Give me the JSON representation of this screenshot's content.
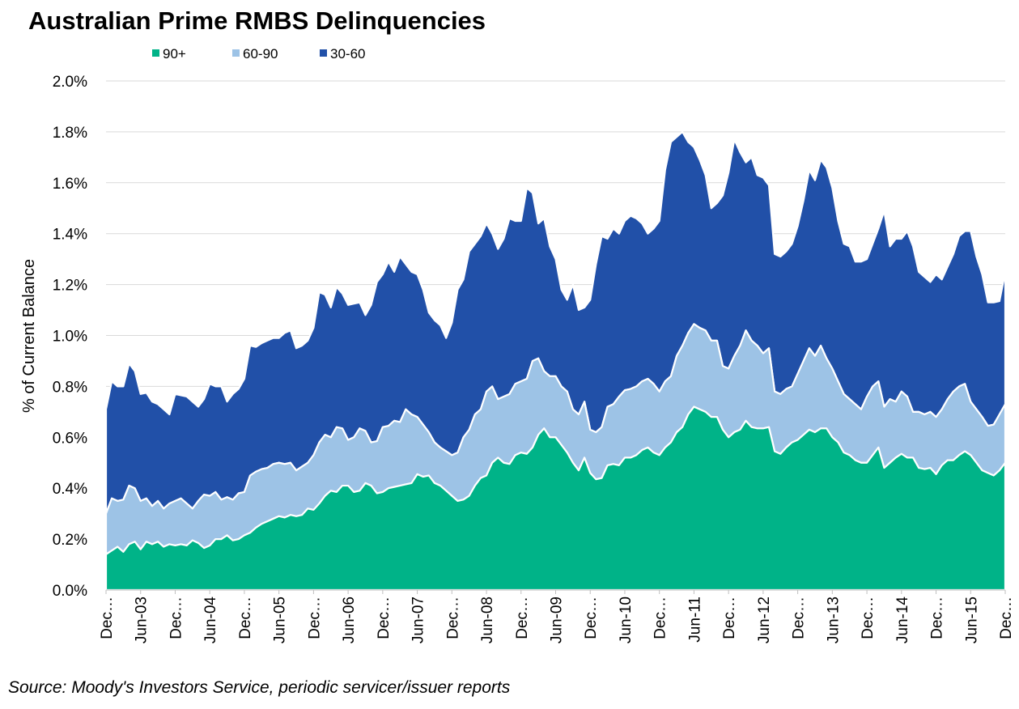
{
  "chart_data": {
    "type": "stacked_area",
    "title": "Australian Prime RMBS Delinquencies",
    "y_label": "% of Current Balance",
    "source": "Source: Moody's Investors Service, periodic servicer/issuer reports",
    "legend": "top",
    "grid": true,
    "ylim": [
      0,
      2.0
    ],
    "yticks": [
      {
        "value": 0,
        "label": "0.0%"
      },
      {
        "value": 0.2,
        "label": "0.2%"
      },
      {
        "value": 0.4,
        "label": "0.4%"
      },
      {
        "value": 0.6,
        "label": "0.6%"
      },
      {
        "value": 0.8,
        "label": "0.8%"
      },
      {
        "value": 1.0,
        "label": "1.0%"
      },
      {
        "value": 1.2,
        "label": "1.2%"
      },
      {
        "value": 1.4,
        "label": "1.4%"
      },
      {
        "value": 1.6,
        "label": "1.6%"
      },
      {
        "value": 1.8,
        "label": "1.8%"
      },
      {
        "value": 2.0,
        "label": "2.0%"
      }
    ],
    "categories": [
      "Dec…",
      null,
      null,
      null,
      null,
      null,
      "Jun-03",
      null,
      null,
      null,
      null,
      null,
      "Dec…",
      null,
      null,
      null,
      null,
      null,
      "Jun-04",
      null,
      null,
      null,
      null,
      null,
      "Dec…",
      null,
      null,
      null,
      null,
      null,
      "Jun-05",
      null,
      null,
      null,
      null,
      null,
      "Dec…",
      null,
      null,
      null,
      null,
      null,
      "Jun-06",
      null,
      null,
      null,
      null,
      null,
      "Dec…",
      null,
      null,
      null,
      null,
      null,
      "Jun-07",
      null,
      null,
      null,
      null,
      null,
      "Dec…",
      null,
      null,
      null,
      null,
      null,
      "Jun-08",
      null,
      null,
      null,
      null,
      null,
      "Dec…",
      null,
      null,
      null,
      null,
      null,
      "Jun-09",
      null,
      null,
      null,
      null,
      null,
      "Dec…",
      null,
      null,
      null,
      null,
      null,
      "Jun-10",
      null,
      null,
      null,
      null,
      null,
      "Dec…",
      null,
      null,
      null,
      null,
      null,
      "Jun-11",
      null,
      null,
      null,
      null,
      null,
      "Dec…",
      null,
      null,
      null,
      null,
      null,
      "Jun-12",
      null,
      null,
      null,
      null,
      null,
      "Dec…",
      null,
      null,
      null,
      null,
      null,
      "Jun-13",
      null,
      null,
      null,
      null,
      null,
      "Dec…",
      null,
      null,
      null,
      null,
      null,
      "Jun-14",
      null,
      null,
      null,
      null,
      null,
      "Dec…",
      null,
      null,
      null,
      null,
      null,
      "Jun-15",
      null,
      null,
      null,
      null,
      null,
      "Dec…"
    ],
    "series": [
      {
        "name": "90+",
        "color": "#00b388",
        "values": [
          0.14,
          0.155,
          0.17,
          0.15,
          0.18,
          0.19,
          0.16,
          0.19,
          0.18,
          0.19,
          0.17,
          0.18,
          0.175,
          0.18,
          0.175,
          0.195,
          0.185,
          0.165,
          0.175,
          0.2,
          0.2,
          0.215,
          0.195,
          0.2,
          0.215,
          0.225,
          0.245,
          0.26,
          0.27,
          0.28,
          0.29,
          0.285,
          0.295,
          0.29,
          0.295,
          0.32,
          0.315,
          0.34,
          0.37,
          0.39,
          0.385,
          0.41,
          0.41,
          0.385,
          0.39,
          0.42,
          0.41,
          0.38,
          0.385,
          0.4,
          0.405,
          0.41,
          0.415,
          0.42,
          0.455,
          0.445,
          0.45,
          0.42,
          0.41,
          0.39,
          0.37,
          0.35,
          0.355,
          0.37,
          0.41,
          0.44,
          0.45,
          0.5,
          0.52,
          0.5,
          0.495,
          0.53,
          0.54,
          0.535,
          0.56,
          0.61,
          0.635,
          0.6,
          0.6,
          0.57,
          0.54,
          0.5,
          0.47,
          0.52,
          0.46,
          0.435,
          0.44,
          0.49,
          0.495,
          0.49,
          0.52,
          0.52,
          0.53,
          0.55,
          0.56,
          0.54,
          0.53,
          0.56,
          0.58,
          0.62,
          0.64,
          0.69,
          0.72,
          0.71,
          0.7,
          0.68,
          0.68,
          0.63,
          0.6,
          0.62,
          0.63,
          0.665,
          0.64,
          0.635,
          0.635,
          0.64,
          0.545,
          0.535,
          0.56,
          0.58,
          0.59,
          0.61,
          0.63,
          0.62,
          0.635,
          0.635,
          0.6,
          0.58,
          0.54,
          0.53,
          0.51,
          0.5,
          0.5,
          0.53,
          0.56,
          0.48,
          0.5,
          0.52,
          0.535,
          0.52,
          0.52,
          0.48,
          0.475,
          0.48,
          0.455,
          0.49,
          0.51,
          0.51,
          0.53,
          0.545,
          0.53,
          0.5,
          0.47,
          0.46,
          0.45,
          0.47,
          0.5
        ]
      },
      {
        "name": "60-90",
        "color": "#9dc3e6",
        "values": [
          0.16,
          0.205,
          0.18,
          0.205,
          0.23,
          0.21,
          0.19,
          0.17,
          0.15,
          0.16,
          0.15,
          0.16,
          0.175,
          0.18,
          0.165,
          0.125,
          0.165,
          0.21,
          0.195,
          0.185,
          0.155,
          0.15,
          0.16,
          0.18,
          0.17,
          0.225,
          0.22,
          0.215,
          0.21,
          0.215,
          0.21,
          0.21,
          0.205,
          0.18,
          0.19,
          0.18,
          0.215,
          0.24,
          0.24,
          0.21,
          0.255,
          0.225,
          0.18,
          0.215,
          0.245,
          0.205,
          0.17,
          0.205,
          0.255,
          0.245,
          0.26,
          0.25,
          0.295,
          0.27,
          0.225,
          0.205,
          0.17,
          0.16,
          0.15,
          0.155,
          0.16,
          0.19,
          0.245,
          0.26,
          0.28,
          0.27,
          0.33,
          0.3,
          0.23,
          0.26,
          0.275,
          0.28,
          0.28,
          0.295,
          0.34,
          0.3,
          0.225,
          0.24,
          0.24,
          0.23,
          0.24,
          0.21,
          0.22,
          0.22,
          0.17,
          0.185,
          0.2,
          0.23,
          0.235,
          0.27,
          0.265,
          0.27,
          0.27,
          0.27,
          0.27,
          0.27,
          0.25,
          0.26,
          0.26,
          0.3,
          0.32,
          0.32,
          0.325,
          0.32,
          0.32,
          0.3,
          0.3,
          0.25,
          0.27,
          0.3,
          0.33,
          0.355,
          0.34,
          0.325,
          0.295,
          0.31,
          0.235,
          0.235,
          0.23,
          0.22,
          0.26,
          0.29,
          0.32,
          0.3,
          0.325,
          0.275,
          0.27,
          0.24,
          0.23,
          0.22,
          0.22,
          0.21,
          0.26,
          0.27,
          0.26,
          0.24,
          0.25,
          0.22,
          0.245,
          0.24,
          0.18,
          0.22,
          0.215,
          0.22,
          0.225,
          0.22,
          0.24,
          0.27,
          0.27,
          0.265,
          0.21,
          0.21,
          0.21,
          0.185,
          0.2,
          0.22,
          0.23
        ]
      },
      {
        "name": "30-60",
        "color": "#2150a8",
        "values": [
          0.41,
          0.46,
          0.45,
          0.445,
          0.48,
          0.46,
          0.42,
          0.415,
          0.41,
          0.38,
          0.39,
          0.35,
          0.42,
          0.405,
          0.42,
          0.42,
          0.37,
          0.375,
          0.44,
          0.415,
          0.445,
          0.375,
          0.415,
          0.41,
          0.445,
          0.51,
          0.49,
          0.495,
          0.5,
          0.495,
          0.49,
          0.515,
          0.52,
          0.48,
          0.475,
          0.48,
          0.5,
          0.59,
          0.55,
          0.51,
          0.55,
          0.53,
          0.53,
          0.525,
          0.495,
          0.455,
          0.54,
          0.625,
          0.6,
          0.645,
          0.585,
          0.65,
          0.57,
          0.56,
          0.56,
          0.53,
          0.47,
          0.48,
          0.48,
          0.445,
          0.52,
          0.64,
          0.62,
          0.7,
          0.67,
          0.68,
          0.66,
          0.6,
          0.59,
          0.62,
          0.69,
          0.64,
          0.63,
          0.75,
          0.66,
          0.53,
          0.6,
          0.51,
          0.46,
          0.38,
          0.36,
          0.49,
          0.41,
          0.37,
          0.51,
          0.66,
          0.75,
          0.66,
          0.69,
          0.64,
          0.665,
          0.68,
          0.66,
          0.62,
          0.57,
          0.61,
          0.67,
          0.83,
          0.92,
          0.86,
          0.84,
          0.75,
          0.695,
          0.66,
          0.61,
          0.52,
          0.54,
          0.67,
          0.77,
          0.85,
          0.76,
          0.66,
          0.72,
          0.67,
          0.69,
          0.64,
          0.54,
          0.54,
          0.54,
          0.56,
          0.58,
          0.63,
          0.7,
          0.69,
          0.73,
          0.75,
          0.71,
          0.63,
          0.59,
          0.6,
          0.56,
          0.58,
          0.54,
          0.56,
          0.6,
          0.77,
          0.6,
          0.64,
          0.6,
          0.65,
          0.65,
          0.55,
          0.54,
          0.51,
          0.56,
          0.51,
          0.52,
          0.54,
          0.59,
          0.6,
          0.67,
          0.6,
          0.56,
          0.485,
          0.48,
          0.445,
          0.52
        ]
      }
    ]
  }
}
